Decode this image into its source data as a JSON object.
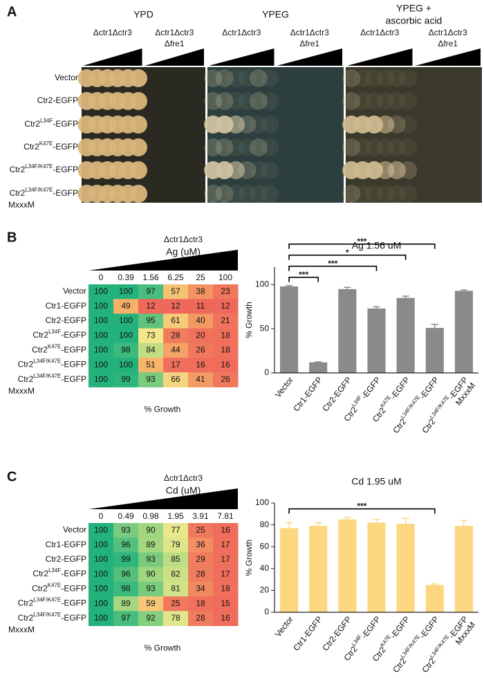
{
  "panel_a": {
    "label": "A",
    "media": [
      [
        "YPD"
      ],
      [
        "YPEG"
      ],
      [
        "YPEG +",
        "ascorbic acid"
      ]
    ],
    "strains": [
      [
        "Δctr1Δctr3"
      ],
      [
        "Δctr1Δctr3",
        "Δfre1"
      ]
    ],
    "rows": [
      {
        "text": "Vector"
      },
      {
        "text": "Ctr2-EGFP"
      },
      {
        "text": "Ctr2",
        "sup": "L34F",
        "rest": "-EGFP"
      },
      {
        "text": "Ctr2",
        "sup": "K47E",
        "rest": "-EGFP"
      },
      {
        "text": "Ctr2",
        "sup": "L34F/K47E",
        "rest": "-EGFP"
      },
      {
        "text": "Ctr2",
        "sup": "L34F/K47E",
        "rest": "-EGFP",
        "note": "MxxxM"
      }
    ]
  },
  "panel_labels": [
    "B",
    "C"
  ],
  "chart_data": [
    {
      "type": "heatmap",
      "strain": "Δctr1Δctr3",
      "metal": "Ag (uM)",
      "columns": [
        0,
        0.39,
        1.56,
        6.25,
        25,
        100
      ],
      "rows": [
        {
          "text": "Vector"
        },
        {
          "text": "Ctr1-EGFP"
        },
        {
          "text": "Ctr2-EGFP"
        },
        {
          "text": "Ctr2",
          "sup": "L34F",
          "rest": "-EGFP"
        },
        {
          "text": "Ctr2",
          "sup": "K47E",
          "rest": "-EGFP"
        },
        {
          "text": "Ctr2",
          "sup": "L34F/K47E",
          "rest": "-EGFP"
        },
        {
          "text": "Ctr2",
          "sup": "L34F/K47E",
          "rest": "-EGFP",
          "note": "MxxxM"
        }
      ],
      "values": [
        [
          100,
          100,
          97,
          57,
          38,
          23
        ],
        [
          100,
          49,
          12,
          12,
          11,
          12
        ],
        [
          100,
          100,
          95,
          61,
          40,
          21
        ],
        [
          100,
          100,
          73,
          28,
          20,
          18
        ],
        [
          100,
          98,
          84,
          44,
          26,
          18
        ],
        [
          100,
          100,
          51,
          17,
          16,
          16
        ],
        [
          100,
          99,
          93,
          66,
          41,
          26
        ]
      ],
      "xlabel": "% Growth"
    },
    {
      "type": "bar",
      "title": "Ag 1.56 uM",
      "ylabel": "% Growth",
      "categories": [
        {
          "text": "Vector"
        },
        {
          "text": "Ctr1-EGFP"
        },
        {
          "text": "Ctr2-EGFP"
        },
        {
          "text": "Ctr2",
          "sup": "L34F",
          "rest": "-EGFP"
        },
        {
          "text": "Ctr2",
          "sup": "K47E",
          "rest": "-EGFP"
        },
        {
          "text": "Ctr2",
          "sup": "L34F/K47E",
          "rest": "-EGFP"
        },
        {
          "text": "Ctr2",
          "sup": "L34F/K47E",
          "rest": "-EGFP",
          "note": "MxxxM"
        }
      ],
      "values": [
        98,
        12,
        95,
        73,
        85,
        51,
        93
      ],
      "errors": [
        1,
        0.5,
        2,
        2,
        2,
        4,
        1
      ],
      "significance": [
        null,
        "***",
        null,
        "***",
        "*",
        "***",
        null
      ],
      "color": "#8a8a8a",
      "ylim": [
        0,
        120
      ],
      "yticks": [
        0,
        50,
        100
      ]
    },
    {
      "type": "heatmap",
      "strain": "Δctr1Δctr3",
      "metal": "Cd (uM)",
      "columns": [
        0,
        0.49,
        0.98,
        1.95,
        3.91,
        7.81
      ],
      "rows": [
        {
          "text": "Vector"
        },
        {
          "text": "Ctr1-EGFP"
        },
        {
          "text": "Ctr2-EGFP"
        },
        {
          "text": "Ctr2",
          "sup": "L34F",
          "rest": "-EGFP"
        },
        {
          "text": "Ctr2",
          "sup": "K47E",
          "rest": "-EGFP"
        },
        {
          "text": "Ctr2",
          "sup": "L34F/K47E",
          "rest": "-EGFP"
        },
        {
          "text": "Ctr2",
          "sup": "L34F/K47E",
          "rest": "-EGFP",
          "note": "MxxxM"
        }
      ],
      "values": [
        [
          100,
          93,
          90,
          77,
          25,
          16
        ],
        [
          100,
          96,
          89,
          79,
          36,
          17
        ],
        [
          100,
          99,
          93,
          85,
          29,
          17
        ],
        [
          100,
          96,
          90,
          82,
          28,
          17
        ],
        [
          100,
          98,
          93,
          81,
          34,
          18
        ],
        [
          100,
          89,
          59,
          25,
          18,
          15
        ],
        [
          100,
          97,
          92,
          78,
          28,
          16
        ]
      ],
      "xlabel": "% Growth"
    },
    {
      "type": "bar",
      "title": "Cd 1.95 uM",
      "ylabel": "% Growth",
      "categories": [
        {
          "text": "Vector"
        },
        {
          "text": "Ctr1-EGFP"
        },
        {
          "text": "Ctr2-EGFP"
        },
        {
          "text": "Ctr2",
          "sup": "L34F",
          "rest": "-EGFP"
        },
        {
          "text": "Ctr2",
          "sup": "K47E",
          "rest": "-EGFP"
        },
        {
          "text": "Ctr2",
          "sup": "L34F/K47E",
          "rest": "-EGFP"
        },
        {
          "text": "Ctr2",
          "sup": "L34F/K47E",
          "rest": "-EGFP",
          "note": "MxxxM"
        }
      ],
      "values": [
        77,
        79,
        85,
        82,
        81,
        25,
        79
      ],
      "errors": [
        5,
        3,
        2,
        3,
        5,
        1,
        5
      ],
      "significance": [
        null,
        null,
        null,
        null,
        null,
        "***",
        null
      ],
      "color": "#fdd780",
      "ylim": [
        0,
        100
      ],
      "yticks": [
        0,
        20,
        40,
        60,
        80,
        100
      ]
    }
  ]
}
